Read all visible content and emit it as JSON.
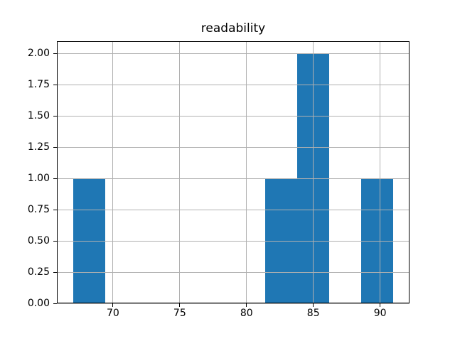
{
  "figure": {
    "background_color": "#ffffff",
    "text_color": "#000000",
    "spine_color": "#000000"
  },
  "chart_data": {
    "type": "bar",
    "subtype": "histogram",
    "title": "readability",
    "xlabel": "",
    "ylabel": "",
    "bin_edges": [
      67.0,
      69.4,
      71.8,
      74.2,
      76.6,
      79.0,
      81.4,
      83.8,
      86.2,
      88.6,
      91.0
    ],
    "counts": [
      1,
      0,
      0,
      0,
      0,
      0,
      1,
      2,
      0,
      1
    ],
    "xlim": [
      65.8,
      92.2
    ],
    "ylim": [
      0,
      2.1
    ],
    "xticks": [
      {
        "value": 70,
        "label": "70"
      },
      {
        "value": 75,
        "label": "75"
      },
      {
        "value": 80,
        "label": "80"
      },
      {
        "value": 85,
        "label": "85"
      },
      {
        "value": 90,
        "label": "90"
      }
    ],
    "yticks": [
      {
        "value": 0.0,
        "label": "0.00"
      },
      {
        "value": 0.25,
        "label": "0.25"
      },
      {
        "value": 0.5,
        "label": "0.50"
      },
      {
        "value": 0.75,
        "label": "0.75"
      },
      {
        "value": 1.0,
        "label": "1.00"
      },
      {
        "value": 1.25,
        "label": "1.25"
      },
      {
        "value": 1.5,
        "label": "1.50"
      },
      {
        "value": 1.75,
        "label": "1.75"
      },
      {
        "value": 2.0,
        "label": "2.00"
      }
    ],
    "grid": true,
    "grid_above_bars": true,
    "legend": false,
    "bar_color": "#1f77b4",
    "grid_color": "#b0b0b0"
  }
}
